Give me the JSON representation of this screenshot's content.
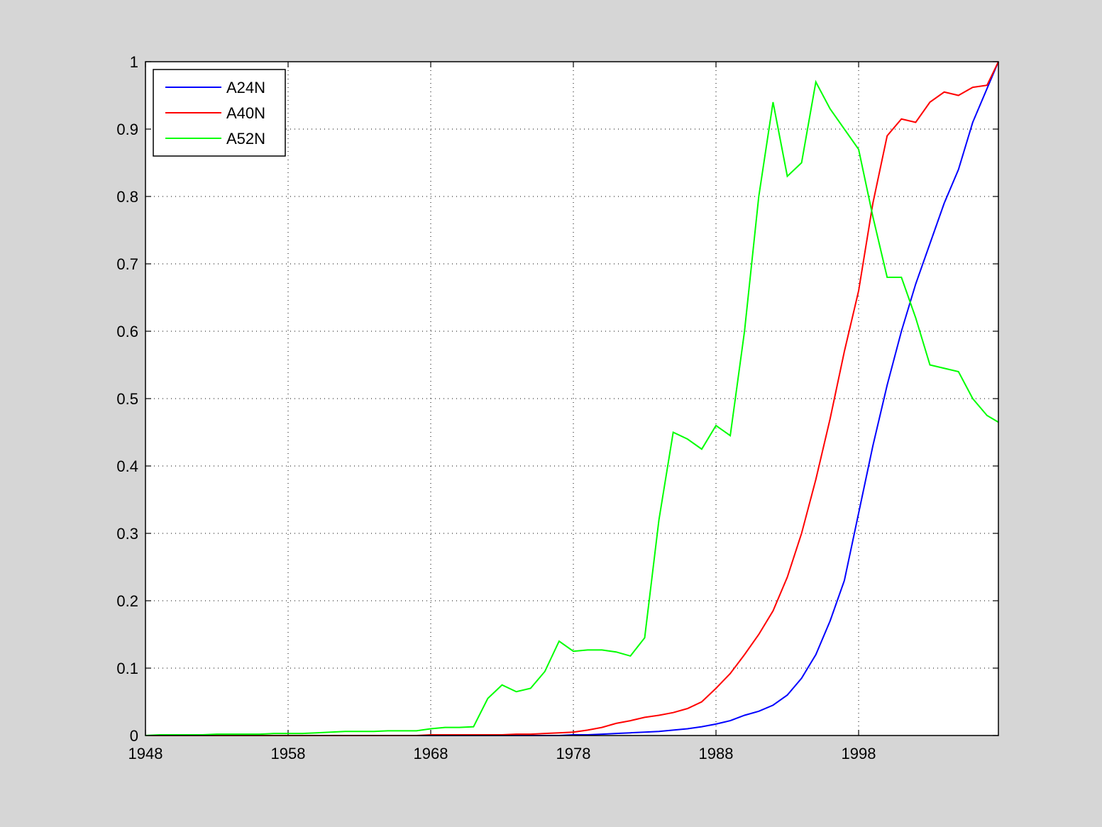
{
  "chart_data": {
    "type": "line",
    "x": [
      1948,
      1949,
      1950,
      1951,
      1952,
      1953,
      1954,
      1955,
      1956,
      1957,
      1958,
      1959,
      1960,
      1961,
      1962,
      1963,
      1964,
      1965,
      1966,
      1967,
      1968,
      1969,
      1970,
      1971,
      1972,
      1973,
      1974,
      1975,
      1976,
      1977,
      1978,
      1979,
      1980,
      1981,
      1982,
      1983,
      1984,
      1985,
      1986,
      1987,
      1988,
      1989,
      1990,
      1991,
      1992,
      1993,
      1994,
      1995,
      1996,
      1997,
      1998,
      1999,
      2000,
      2001,
      2002,
      2003,
      2004,
      2005,
      2006,
      2007,
      2007.8
    ],
    "series": [
      {
        "name": "A24N",
        "color": "#0000ff",
        "values": [
          0,
          0,
          0,
          0,
          0,
          0,
          0,
          0,
          0,
          0,
          0,
          0,
          0,
          0,
          0,
          0,
          0,
          0,
          0,
          0,
          0,
          0,
          0,
          0,
          0,
          0,
          0,
          0,
          0,
          0,
          0.001,
          0.001,
          0.002,
          0.003,
          0.004,
          0.005,
          0.006,
          0.008,
          0.01,
          0.013,
          0.017,
          0.022,
          0.03,
          0.036,
          0.045,
          0.06,
          0.085,
          0.12,
          0.17,
          0.23,
          0.33,
          0.43,
          0.52,
          0.6,
          0.67,
          0.73,
          0.79,
          0.84,
          0.91,
          0.96,
          1
        ]
      },
      {
        "name": "A40N",
        "color": "#ff0000",
        "values": [
          0,
          0,
          0,
          0,
          0,
          0,
          0,
          0,
          0,
          0,
          0,
          0,
          0,
          0,
          0,
          0,
          0,
          0,
          0,
          0,
          0.001,
          0.001,
          0.001,
          0.001,
          0.001,
          0.001,
          0.002,
          0.002,
          0.003,
          0.004,
          0.005,
          0.008,
          0.012,
          0.018,
          0.022,
          0.027,
          0.03,
          0.034,
          0.04,
          0.05,
          0.07,
          0.092,
          0.12,
          0.15,
          0.185,
          0.235,
          0.3,
          0.38,
          0.47,
          0.57,
          0.66,
          0.79,
          0.89,
          0.915,
          0.91,
          0.94,
          0.955,
          0.95,
          0.962,
          0.965,
          1
        ]
      },
      {
        "name": "A52N",
        "color": "#00ff00",
        "values": [
          0,
          0.001,
          0.001,
          0.001,
          0.001,
          0.002,
          0.002,
          0.002,
          0.002,
          0.003,
          0.003,
          0.003,
          0.004,
          0.005,
          0.006,
          0.006,
          0.006,
          0.007,
          0.007,
          0.007,
          0.01,
          0.012,
          0.012,
          0.013,
          0.055,
          0.075,
          0.065,
          0.07,
          0.095,
          0.14,
          0.125,
          0.127,
          0.127,
          0.124,
          0.118,
          0.145,
          0.32,
          0.45,
          0.44,
          0.425,
          0.46,
          0.445,
          0.6,
          0.8,
          0.94,
          0.83,
          0.85,
          0.97,
          0.93,
          0.9,
          0.87,
          0.77,
          0.68,
          0.68,
          0.62,
          0.55,
          0.545,
          0.54,
          0.5,
          0.475,
          0.465
        ]
      }
    ],
    "xlim": [
      1948,
      2007.8
    ],
    "ylim": [
      0,
      1
    ],
    "xticks": [
      1948,
      1958,
      1968,
      1978,
      1988,
      1998
    ],
    "yticks": [
      0,
      0.1,
      0.2,
      0.3,
      0.4,
      0.5,
      0.6,
      0.7,
      0.8,
      0.9,
      1
    ],
    "grid": true,
    "legend": "upper-left"
  }
}
